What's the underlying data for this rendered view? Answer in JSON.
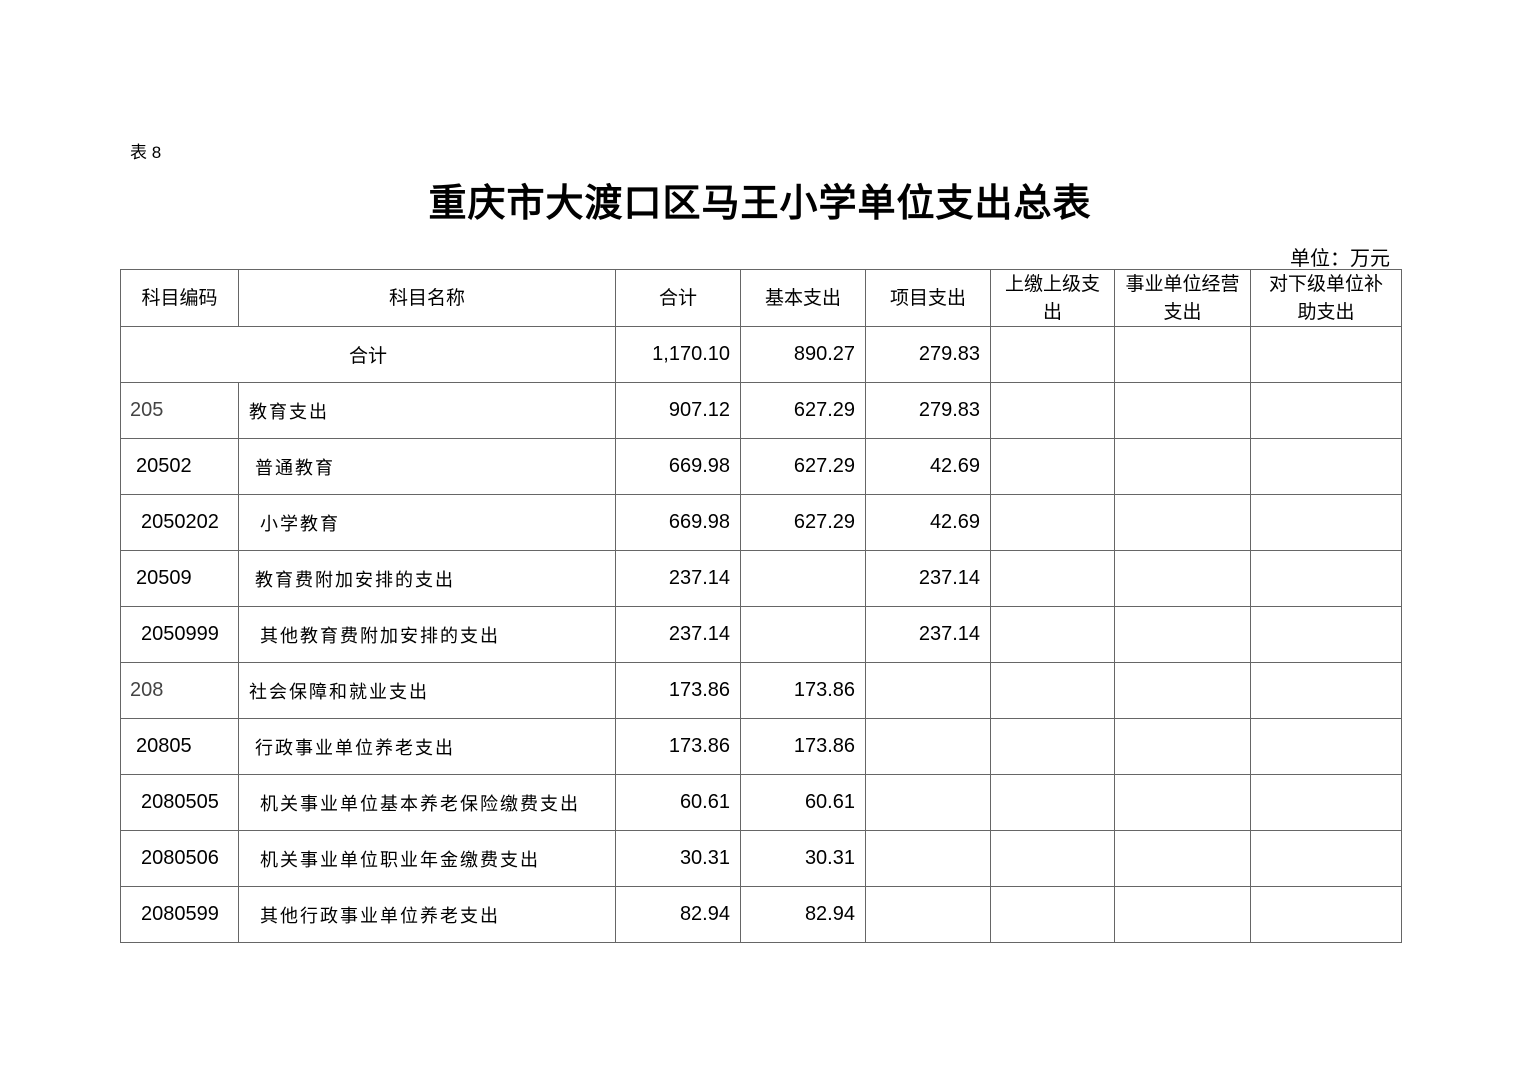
{
  "table_label": "表 8",
  "title": "重庆市大渡口区马王小学单位支出总表",
  "unit": "单位：万元",
  "headers": [
    "科目编码",
    "科目名称",
    "合计",
    "基本支出",
    "项目支出",
    "上缴上级支出",
    "事业单位经营支出",
    "对下级单位补助支出"
  ],
  "total": {
    "label": "合计",
    "sum": "1,170.10",
    "basic": "890.27",
    "project": "279.83",
    "c6": "",
    "c7": "",
    "c8": ""
  },
  "rows": [
    {
      "level": 1,
      "code": "205",
      "name": "教育支出",
      "sum": "907.12",
      "basic": "627.29",
      "project": "279.83"
    },
    {
      "level": 2,
      "code": "20502",
      "name": "普通教育",
      "sum": "669.98",
      "basic": "627.29",
      "project": "42.69"
    },
    {
      "level": 3,
      "code": "2050202",
      "name": "小学教育",
      "sum": "669.98",
      "basic": "627.29",
      "project": "42.69"
    },
    {
      "level": 2,
      "code": "20509",
      "name": "教育费附加安排的支出",
      "sum": "237.14",
      "basic": "",
      "project": "237.14"
    },
    {
      "level": 3,
      "code": "2050999",
      "name": "其他教育费附加安排的支出",
      "sum": "237.14",
      "basic": "",
      "project": "237.14"
    },
    {
      "level": 1,
      "code": "208",
      "name": "社会保障和就业支出",
      "sum": "173.86",
      "basic": "173.86",
      "project": ""
    },
    {
      "level": 2,
      "code": "20805",
      "name": "行政事业单位养老支出",
      "sum": "173.86",
      "basic": "173.86",
      "project": ""
    },
    {
      "level": 3,
      "code": "2080505",
      "name": "机关事业单位基本养老保险缴费支出",
      "sum": "60.61",
      "basic": "60.61",
      "project": ""
    },
    {
      "level": 3,
      "code": "2080506",
      "name": "机关事业单位职业年金缴费支出",
      "sum": "30.31",
      "basic": "30.31",
      "project": ""
    },
    {
      "level": 3,
      "code": "2080599",
      "name": "其他行政事业单位养老支出",
      "sum": "82.94",
      "basic": "82.94",
      "project": ""
    }
  ]
}
